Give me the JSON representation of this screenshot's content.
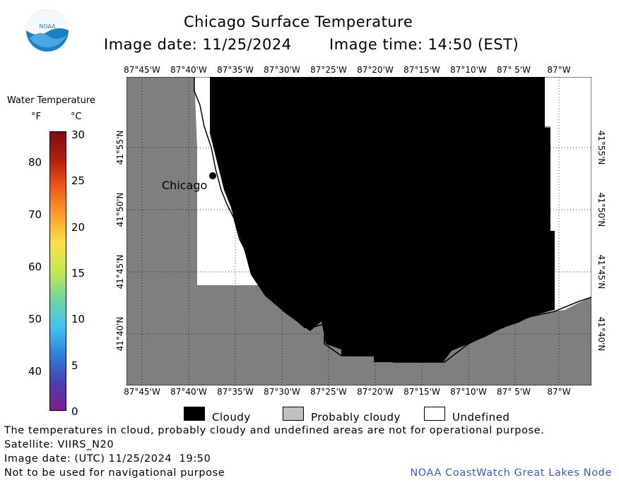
{
  "logo": {
    "text": "NOAA",
    "icon": "noaa-logo-icon",
    "colors": {
      "blue": "#1b7fc4",
      "white": "#ffffff"
    }
  },
  "header": {
    "title": "Chicago Surface Temperature",
    "image_date": "Image date: 11/25/2024",
    "image_time": "Image time: 14:50 (EST)"
  },
  "colorbar": {
    "title": "Water Temperature",
    "unit_f": "°F",
    "unit_c": "°C",
    "f_ticks": [
      "80",
      "70",
      "60",
      "50",
      "40"
    ],
    "c_ticks": [
      "30",
      "25",
      "20",
      "15",
      "10",
      "5",
      "0"
    ],
    "colors": [
      "#7b1e8c",
      "#4a3fb0",
      "#2f7ee0",
      "#40c6ee",
      "#6fd6a0",
      "#c6e84e",
      "#f7e14a",
      "#f9a12a",
      "#ef5a16",
      "#b31e10",
      "#7f0d0d"
    ]
  },
  "map": {
    "lon_labels": [
      "87°45'W",
      "87°40'W",
      "87°35'W",
      "87°30'W",
      "87°25'W",
      "87°20'W",
      "87°15'W",
      "87°10'W",
      "87° 5'W",
      "87°W"
    ],
    "lat_labels": [
      "41°55'N",
      "41°50'N",
      "41°45'N",
      "41°40'N"
    ],
    "city_label": "Chicago",
    "colors": {
      "land": "#7f7f7f",
      "cloud": "#000000",
      "undefined": "#ffffff"
    }
  },
  "legend": {
    "cloudy": "Cloudy",
    "probably_cloudy": "Probably cloudy",
    "undefined": "Undefined",
    "colors": {
      "cloudy": "#000000",
      "probably_cloudy": "#bfbfbf",
      "undefined": "#ffffff"
    }
  },
  "footer": {
    "disclaimer": "The temperatures in cloud, probably cloudy and undefined areas are not for operational purpose.",
    "satellite": "Satellite: VIIRS_N20",
    "utc_date": "Image date: (UTC) 11/25/2024  19:50",
    "nav_note": "Not to be used for navigational purpose",
    "credit": "NOAA CoastWatch Great Lakes Node",
    "credit_color": "#3a5fb0"
  }
}
